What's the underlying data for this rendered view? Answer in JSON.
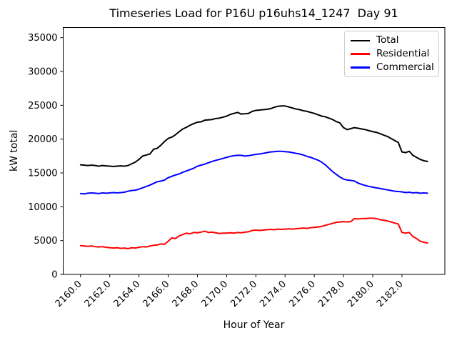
{
  "chart_data": {
    "type": "line",
    "title": "Timeseries Load for P16U p16uhs14_1247  Day 91",
    "xlabel": "Hour of Year",
    "ylabel": "kW total",
    "xlim": [
      2158.8125,
      2184.9375
    ],
    "ylim": [
      0,
      36500
    ],
    "grid": false,
    "legend_position": "upper right",
    "xticks": [
      2160,
      2162,
      2164,
      2166,
      2168,
      2170,
      2172,
      2174,
      2176,
      2178,
      2180,
      2182
    ],
    "xtick_labels": [
      "2160.0",
      "2162.0",
      "2164.0",
      "2166.0",
      "2168.0",
      "2170.0",
      "2172.0",
      "2174.0",
      "2176.0",
      "2178.0",
      "2180.0",
      "2182.0"
    ],
    "yticks": [
      0,
      5000,
      10000,
      15000,
      20000,
      25000,
      30000,
      35000
    ],
    "ytick_labels": [
      "0",
      "5000",
      "10000",
      "15000",
      "20000",
      "25000",
      "30000",
      "35000"
    ],
    "x": [
      2160.0,
      2160.25,
      2160.5,
      2160.75,
      2161.0,
      2161.25,
      2161.5,
      2161.75,
      2162.0,
      2162.25,
      2162.5,
      2162.75,
      2163.0,
      2163.25,
      2163.5,
      2163.75,
      2164.0,
      2164.25,
      2164.5,
      2164.75,
      2165.0,
      2165.25,
      2165.5,
      2165.75,
      2166.0,
      2166.25,
      2166.5,
      2166.75,
      2167.0,
      2167.25,
      2167.5,
      2167.75,
      2168.0,
      2168.25,
      2168.5,
      2168.75,
      2169.0,
      2169.25,
      2169.5,
      2169.75,
      2170.0,
      2170.25,
      2170.5,
      2170.75,
      2171.0,
      2171.25,
      2171.5,
      2171.75,
      2172.0,
      2172.25,
      2172.5,
      2172.75,
      2173.0,
      2173.25,
      2173.5,
      2173.75,
      2174.0,
      2174.25,
      2174.5,
      2174.75,
      2175.0,
      2175.25,
      2175.5,
      2175.75,
      2176.0,
      2176.25,
      2176.5,
      2176.75,
      2177.0,
      2177.25,
      2177.5,
      2177.75,
      2178.0,
      2178.25,
      2178.5,
      2178.75,
      2179.0,
      2179.25,
      2179.5,
      2179.75,
      2180.0,
      2180.25,
      2180.5,
      2180.75,
      2181.0,
      2181.25,
      2181.5,
      2181.75,
      2182.0,
      2182.25,
      2182.5,
      2182.75,
      2183.0,
      2183.25,
      2183.5,
      2183.75
    ],
    "series": [
      {
        "name": "Total",
        "color": "#000000",
        "values": [
          16200,
          16150,
          16100,
          16150,
          16100,
          16000,
          16100,
          16050,
          16000,
          15950,
          16000,
          16050,
          16000,
          16100,
          16350,
          16600,
          17000,
          17500,
          17650,
          17800,
          18500,
          18650,
          19100,
          19650,
          20100,
          20300,
          20650,
          21100,
          21500,
          21750,
          22050,
          22300,
          22500,
          22550,
          22800,
          22850,
          22900,
          23050,
          23100,
          23250,
          23400,
          23650,
          23800,
          23950,
          23700,
          23750,
          23800,
          24100,
          24250,
          24300,
          24350,
          24400,
          24500,
          24700,
          24850,
          24900,
          24900,
          24750,
          24600,
          24450,
          24350,
          24200,
          24100,
          23950,
          23800,
          23600,
          23400,
          23300,
          23100,
          22900,
          22600,
          22400,
          21700,
          21400,
          21550,
          21700,
          21600,
          21500,
          21400,
          21250,
          21100,
          21000,
          20800,
          20600,
          20400,
          20100,
          19800,
          19500,
          18100,
          18000,
          18200,
          17600,
          17300,
          17000,
          16800,
          16700
        ]
      },
      {
        "name": "Residential",
        "color": "#ff0000",
        "values": [
          4250,
          4200,
          4150,
          4200,
          4100,
          4050,
          4100,
          4000,
          3950,
          3900,
          3950,
          3850,
          3900,
          3800,
          3950,
          3900,
          4000,
          4100,
          4050,
          4200,
          4300,
          4350,
          4500,
          4450,
          4900,
          5400,
          5300,
          5700,
          5900,
          6100,
          6000,
          6200,
          6150,
          6250,
          6400,
          6200,
          6250,
          6150,
          6050,
          6100,
          6100,
          6150,
          6100,
          6200,
          6150,
          6250,
          6300,
          6500,
          6550,
          6500,
          6550,
          6600,
          6650,
          6600,
          6700,
          6650,
          6700,
          6750,
          6700,
          6750,
          6800,
          6850,
          6800,
          6900,
          6950,
          7000,
          7100,
          7250,
          7400,
          7550,
          7700,
          7750,
          7800,
          7750,
          7800,
          8250,
          8200,
          8250,
          8250,
          8300,
          8300,
          8250,
          8100,
          8000,
          7900,
          7750,
          7600,
          7450,
          6200,
          6100,
          6200,
          5600,
          5300,
          4900,
          4750,
          4650
        ]
      },
      {
        "name": "Commercial",
        "color": "#0000ff",
        "values": [
          11950,
          11900,
          12000,
          12050,
          12000,
          11950,
          12050,
          12000,
          12050,
          12100,
          12050,
          12100,
          12150,
          12300,
          12400,
          12450,
          12600,
          12800,
          13000,
          13200,
          13450,
          13700,
          13800,
          13950,
          14300,
          14500,
          14700,
          14850,
          15100,
          15300,
          15500,
          15700,
          16000,
          16150,
          16300,
          16500,
          16700,
          16850,
          17000,
          17150,
          17300,
          17450,
          17550,
          17600,
          17600,
          17500,
          17550,
          17650,
          17750,
          17800,
          17900,
          18000,
          18100,
          18150,
          18200,
          18200,
          18150,
          18100,
          18000,
          17900,
          17800,
          17650,
          17450,
          17300,
          17100,
          16900,
          16600,
          16200,
          15700,
          15200,
          14800,
          14400,
          14100,
          13950,
          13900,
          13800,
          13500,
          13300,
          13150,
          13000,
          12900,
          12800,
          12700,
          12600,
          12500,
          12400,
          12300,
          12250,
          12200,
          12100,
          12150,
          12050,
          12100,
          12000,
          12050,
          12000
        ]
      }
    ]
  }
}
